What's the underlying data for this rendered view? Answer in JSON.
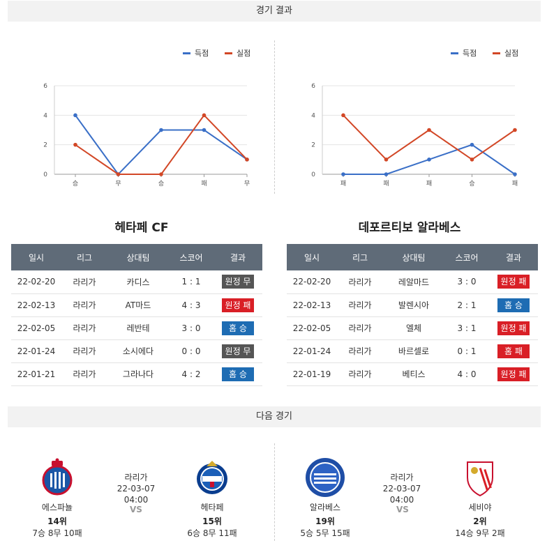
{
  "sections": {
    "results_title": "경기 결과",
    "next_title": "다음 경기"
  },
  "chart_data": [
    {
      "type": "line",
      "categories": [
        "승",
        "무",
        "승",
        "패",
        "무"
      ],
      "series": [
        {
          "name": "득점",
          "values": [
            4,
            0,
            3,
            3,
            1
          ],
          "color": "#3a6fc7"
        },
        {
          "name": "실점",
          "values": [
            2,
            0,
            0,
            4,
            1
          ],
          "color": "#d24726"
        }
      ],
      "ylim": [
        0,
        6
      ],
      "yticks": [
        0,
        2,
        4,
        6
      ],
      "legend": "top-right"
    },
    {
      "type": "line",
      "categories": [
        "패",
        "패",
        "패",
        "승",
        "패"
      ],
      "series": [
        {
          "name": "득점",
          "values": [
            0,
            0,
            1,
            2,
            0
          ],
          "color": "#3a6fc7"
        },
        {
          "name": "실점",
          "values": [
            4,
            1,
            3,
            1,
            3
          ],
          "color": "#d24726"
        }
      ],
      "ylim": [
        0,
        6
      ],
      "yticks": [
        0,
        2,
        4,
        6
      ],
      "legend": "top-right"
    }
  ],
  "teams": [
    {
      "name": "헤타페 CF",
      "headers": [
        "일시",
        "리그",
        "상대팀",
        "스코어",
        "결과"
      ],
      "rows": [
        {
          "date": "22-02-20",
          "league": "라리가",
          "opponent": "카디스",
          "score": "1 : 1",
          "result": "원정 무",
          "kind": "draw"
        },
        {
          "date": "22-02-13",
          "league": "라리가",
          "opponent": "AT마드",
          "score": "4 : 3",
          "result": "원정 패",
          "kind": "loss"
        },
        {
          "date": "22-02-05",
          "league": "라리가",
          "opponent": "레반테",
          "score": "3 : 0",
          "result": "홈 승",
          "kind": "win"
        },
        {
          "date": "22-01-24",
          "league": "라리가",
          "opponent": "소시에다",
          "score": "0 : 0",
          "result": "원정 무",
          "kind": "draw"
        },
        {
          "date": "22-01-21",
          "league": "라리가",
          "opponent": "그라나다",
          "score": "4 : 2",
          "result": "홈 승",
          "kind": "win"
        }
      ]
    },
    {
      "name": "데포르티보 알라베스",
      "headers": [
        "일시",
        "리그",
        "상대팀",
        "스코어",
        "결과"
      ],
      "rows": [
        {
          "date": "22-02-20",
          "league": "라리가",
          "opponent": "레알마드",
          "score": "3 : 0",
          "result": "원정 패",
          "kind": "loss"
        },
        {
          "date": "22-02-13",
          "league": "라리가",
          "opponent": "발렌시아",
          "score": "2 : 1",
          "result": "홈 승",
          "kind": "win"
        },
        {
          "date": "22-02-05",
          "league": "라리가",
          "opponent": "엘체",
          "score": "3 : 1",
          "result": "원정 패",
          "kind": "loss"
        },
        {
          "date": "22-01-24",
          "league": "라리가",
          "opponent": "바르셀로",
          "score": "0 : 1",
          "result": "홈 패",
          "kind": "loss"
        },
        {
          "date": "22-01-19",
          "league": "라리가",
          "opponent": "베티스",
          "score": "4 : 0",
          "result": "원정 패",
          "kind": "loss"
        }
      ]
    }
  ],
  "next_matches": [
    {
      "league": "라리가",
      "datetime": "22-03-07 04:00",
      "vs": "VS",
      "home": {
        "name": "에스파뇰",
        "rank": "14위",
        "record": "7승 8무 10패"
      },
      "away": {
        "name": "헤타페",
        "rank": "15위",
        "record": "6승 8무 11패"
      }
    },
    {
      "league": "라리가",
      "datetime": "22-03-07 04:00",
      "vs": "VS",
      "home": {
        "name": "알라베스",
        "rank": "19위",
        "record": "5승 5무 15패"
      },
      "away": {
        "name": "세비야",
        "rank": "2위",
        "record": "14승 9무 2패"
      }
    }
  ]
}
